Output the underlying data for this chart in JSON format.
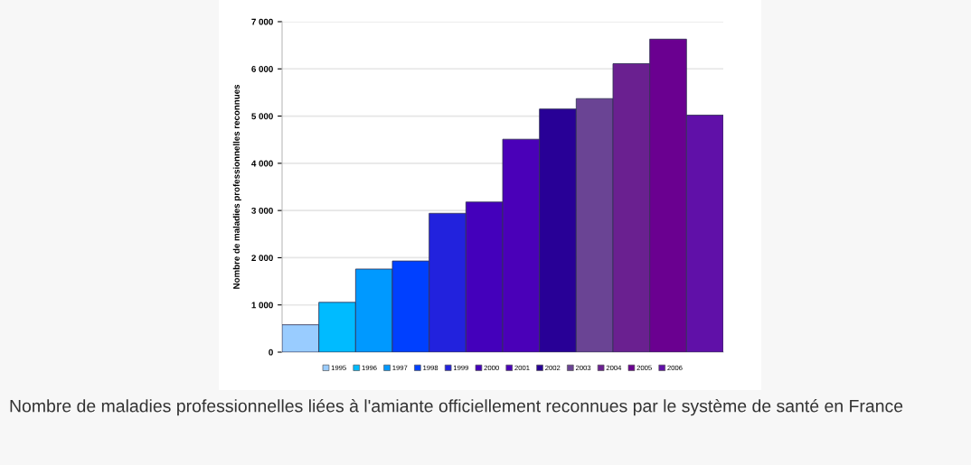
{
  "chart_data": {
    "type": "bar",
    "ylabel": "Nombre de maladies professionnelles reconnues",
    "categories": [
      null
    ],
    "series": [
      {
        "name": "1995",
        "color": "#99ccff",
        "values": [
          580
        ]
      },
      {
        "name": "1996",
        "color": "#00bbff",
        "values": [
          1055
        ]
      },
      {
        "name": "1997",
        "color": "#0099ff",
        "values": [
          1760
        ]
      },
      {
        "name": "1998",
        "color": "#0040ff",
        "values": [
          1930
        ]
      },
      {
        "name": "1999",
        "color": "#2222dd",
        "values": [
          2940
        ]
      },
      {
        "name": "2000",
        "color": "#4400bb",
        "values": [
          3180
        ]
      },
      {
        "name": "2001",
        "color": "#4a00b8",
        "values": [
          4510
        ]
      },
      {
        "name": "2002",
        "color": "#280096",
        "values": [
          5150
        ]
      },
      {
        "name": "2003",
        "color": "#6a4494",
        "values": [
          5370
        ]
      },
      {
        "name": "2004",
        "color": "#6a2090",
        "values": [
          6110
        ]
      },
      {
        "name": "2005",
        "color": "#6a0090",
        "values": [
          6630
        ]
      },
      {
        "name": "2006",
        "color": "#6010a8",
        "values": [
          5020
        ]
      }
    ],
    "ylim": [
      0,
      7000
    ],
    "yticks": [
      0,
      {
        "value": 1000,
        "label": "1 000"
      },
      {
        "value": 2000,
        "label": "2 000"
      },
      {
        "value": 3000,
        "label": "3 000"
      },
      {
        "value": 4000,
        "label": "4 000"
      },
      {
        "value": 5000,
        "label": "5 000"
      },
      {
        "value": 6000,
        "label": "6 000"
      },
      {
        "value": 7000,
        "label": "7 000"
      }
    ],
    "grid": "y",
    "legend": "bottom",
    "annotations": [
      "Nombre de maladies professionnelles liées à l'amiante officiellement reconnues par le système de santé en France"
    ]
  }
}
